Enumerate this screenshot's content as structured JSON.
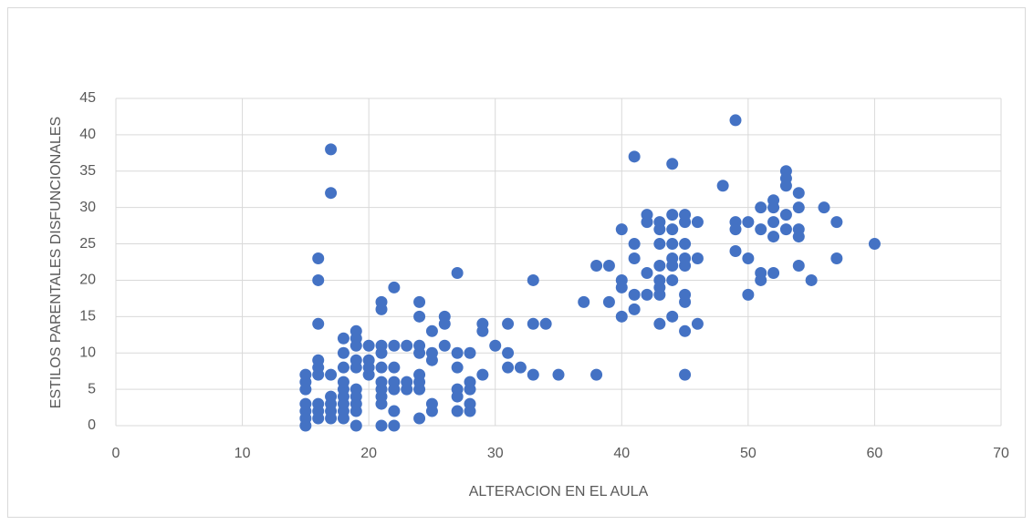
{
  "chart_data": {
    "type": "scatter",
    "x_label": "ALTERACION EN EL AULA",
    "y_label": "ESTILOS PARENTALES DISFUNCIONALES",
    "color": "#4472c4",
    "grid": true,
    "xlim": [
      0,
      70
    ],
    "xticks": [
      0,
      10,
      20,
      30,
      40,
      50,
      60,
      70
    ],
    "ylim": [
      0,
      45
    ],
    "yticks": [
      0,
      5,
      10,
      15,
      20,
      25,
      30,
      35,
      40,
      45
    ],
    "x": [
      15,
      15,
      15,
      15,
      15,
      15,
      15,
      16,
      16,
      16,
      16,
      16,
      16,
      16,
      16,
      16,
      17,
      17,
      17,
      17,
      17,
      17,
      17,
      18,
      18,
      18,
      18,
      18,
      18,
      18,
      18,
      18,
      19,
      19,
      19,
      19,
      19,
      19,
      19,
      19,
      19,
      19,
      20,
      20,
      20,
      20,
      21,
      21,
      21,
      21,
      21,
      21,
      21,
      21,
      21,
      21,
      22,
      22,
      22,
      22,
      22,
      22,
      22,
      23,
      23,
      23,
      24,
      24,
      24,
      24,
      24,
      24,
      24,
      24,
      25,
      25,
      25,
      25,
      25,
      26,
      26,
      26,
      27,
      27,
      27,
      27,
      27,
      27,
      28,
      28,
      28,
      28,
      28,
      29,
      29,
      29,
      30,
      31,
      31,
      31,
      32,
      33,
      33,
      33,
      34,
      35,
      37,
      38,
      38,
      39,
      39,
      40,
      40,
      40,
      40,
      41,
      41,
      41,
      41,
      41,
      42,
      42,
      42,
      42,
      43,
      43,
      43,
      43,
      43,
      43,
      43,
      43,
      44,
      44,
      44,
      44,
      44,
      44,
      44,
      44,
      45,
      45,
      45,
      45,
      45,
      45,
      45,
      45,
      45,
      46,
      46,
      46,
      48,
      49,
      49,
      49,
      49,
      50,
      50,
      50,
      51,
      51,
      51,
      51,
      52,
      52,
      52,
      52,
      52,
      53,
      53,
      53,
      53,
      53,
      54,
      54,
      54,
      54,
      54,
      55,
      56,
      57,
      57,
      60
    ],
    "values": [
      0,
      1,
      2,
      3,
      5,
      6,
      7,
      1,
      2,
      3,
      7,
      8,
      9,
      14,
      20,
      23,
      1,
      2,
      3,
      4,
      7,
      32,
      38,
      1,
      2,
      3,
      4,
      5,
      6,
      8,
      10,
      12,
      0,
      2,
      3,
      4,
      5,
      8,
      9,
      11,
      12,
      13,
      7,
      8,
      9,
      11,
      0,
      3,
      4,
      5,
      6,
      8,
      10,
      11,
      16,
      17,
      0,
      2,
      5,
      6,
      8,
      11,
      19,
      5,
      6,
      11,
      1,
      5,
      6,
      7,
      10,
      11,
      15,
      17,
      2,
      3,
      9,
      10,
      13,
      11,
      14,
      15,
      2,
      4,
      5,
      8,
      10,
      21,
      2,
      3,
      5,
      6,
      10,
      7,
      13,
      14,
      11,
      8,
      10,
      14,
      8,
      7,
      14,
      20,
      14,
      7,
      17,
      7,
      22,
      17,
      22,
      15,
      19,
      20,
      27,
      16,
      18,
      23,
      25,
      37,
      18,
      21,
      28,
      29,
      14,
      18,
      19,
      20,
      22,
      25,
      27,
      28,
      15,
      20,
      22,
      23,
      25,
      27,
      29,
      36,
      7,
      13,
      17,
      18,
      22,
      23,
      25,
      28,
      29,
      14,
      23,
      28,
      33,
      24,
      27,
      28,
      42,
      18,
      23,
      28,
      20,
      21,
      27,
      30,
      21,
      26,
      28,
      30,
      31,
      27,
      29,
      33,
      34,
      35,
      22,
      26,
      27,
      30,
      32,
      20,
      30,
      23,
      28,
      25
    ]
  }
}
